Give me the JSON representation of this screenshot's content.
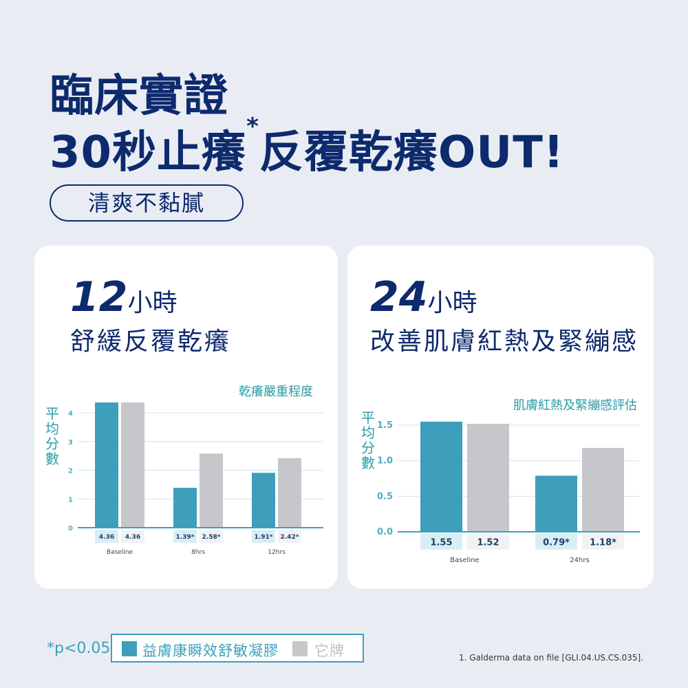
{
  "headline": {
    "line1": "臨床實證",
    "line2_prefix": "30秒止癢",
    "line2_star": "*",
    "line2_suffix": "反覆乾癢OUT!",
    "pill": "清爽不黏膩"
  },
  "colors": {
    "navy": "#0e2a6e",
    "product": "#3d9fbc",
    "other": "#c6c7ca",
    "accent_text": "#2a9aa5"
  },
  "cards": [
    {
      "num": "12",
      "unit": "小時",
      "subtitle": "舒緩反覆乾癢"
    },
    {
      "num": "24",
      "unit": "小時",
      "subtitle": "改善肌膚紅熱及緊繃感"
    }
  ],
  "chart_data": [
    {
      "type": "bar",
      "title": "乾癢嚴重程度",
      "ylabel": "平均分數",
      "categories": [
        "Baseline",
        "8hrs",
        "12hrs"
      ],
      "ylim": [
        0,
        4
      ],
      "yticks": [
        "0",
        "1",
        "2",
        "3",
        "4"
      ],
      "grid": true,
      "series": [
        {
          "name": "益膚康瞬效舒敏凝膠",
          "values": [
            4.36,
            1.39,
            1.91
          ],
          "labels": [
            "4.36",
            "1.39*",
            "1.91*"
          ]
        },
        {
          "name": "它牌",
          "values": [
            4.36,
            2.58,
            2.42
          ],
          "labels": [
            "4.36",
            "2.58*",
            "2.42*"
          ]
        }
      ]
    },
    {
      "type": "bar",
      "title": "肌膚紅熱及緊繃感評估",
      "ylabel": "平均分數",
      "categories": [
        "Baseline",
        "24hrs"
      ],
      "ylim": [
        0,
        1.5
      ],
      "yticks": [
        "0.0",
        "0.5",
        "1.0",
        "1.5"
      ],
      "grid": true,
      "series": [
        {
          "name": "益膚康瞬效舒敏凝膠",
          "values": [
            1.55,
            0.79
          ],
          "labels": [
            "1.55",
            "0.79*"
          ]
        },
        {
          "name": "它牌",
          "values": [
            1.52,
            1.18
          ],
          "labels": [
            "1.52",
            "1.18*"
          ]
        }
      ]
    }
  ],
  "footer": {
    "pvalue": "*p<0.05",
    "legend_product": "益膚康瞬效舒敏凝膠",
    "legend_other": "它牌",
    "reference": "1. Galderma data on file [GLI.04.US.CS.035]."
  }
}
